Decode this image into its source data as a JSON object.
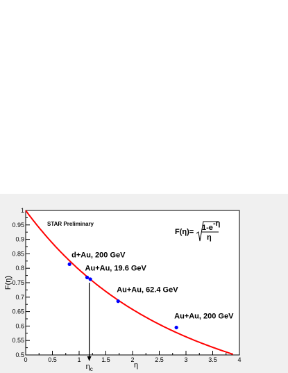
{
  "chart_data": {
    "type": "scatter",
    "title": "",
    "xlabel": "η",
    "ylabel": "F(η)",
    "xlim": [
      0,
      4
    ],
    "ylim": [
      0.5,
      1.0
    ],
    "xticks": [
      "0",
      "0.5",
      "1",
      "1.5",
      "2",
      "2.5",
      "3",
      "3.5",
      "4"
    ],
    "yticks": [
      "0.5",
      "0.55",
      "0.6",
      "0.65",
      "0.7",
      "0.75",
      "0.8",
      "0.85",
      "0.9",
      "0.95",
      "1"
    ],
    "grid": false,
    "preliminary_label": "STAR Preliminary",
    "formula": {
      "lhs": "F(η)=",
      "numerator": "1-e",
      "exponent": "-η",
      "denominator": "η"
    },
    "curve": {
      "function": "sqrt((1-exp(-x))/x)",
      "x_range": [
        0,
        3.88
      ],
      "color": "#ff0000"
    },
    "series": [
      {
        "color": "#0000ff",
        "points": [
          {
            "x": 0.82,
            "y": 0.814,
            "label": "d+Au, 200 GeV"
          },
          {
            "x": 1.15,
            "y": 0.768,
            "label": "Au+Au, 19.6 GeV"
          },
          {
            "x": 1.21,
            "y": 0.762,
            "label": ""
          },
          {
            "x": 1.73,
            "y": 0.686,
            "label": "Au+Au, 62.4 GeV"
          },
          {
            "x": 2.82,
            "y": 0.595,
            "label": "Au+Au, 200 GeV"
          }
        ]
      }
    ],
    "marker": {
      "x": 1.19,
      "y_top": 0.75,
      "label": "η",
      "subscript": "c"
    }
  }
}
